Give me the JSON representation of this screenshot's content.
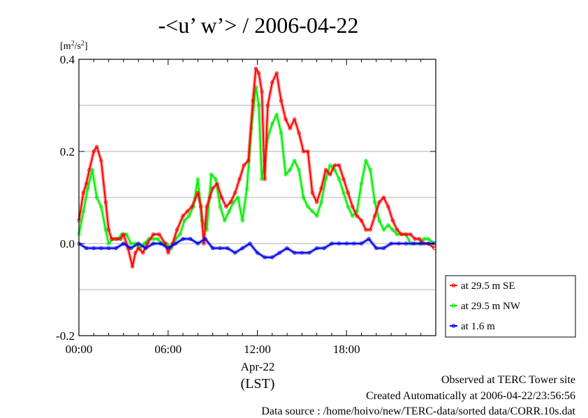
{
  "chart_data": {
    "type": "line",
    "title": "-<u’ w’> / 2006-04-22",
    "ylabel_base": "[m",
    "ylabel_sup1": "2",
    "ylabel_mid": "/s",
    "ylabel_sup2": "2",
    "ylabel_end": "]",
    "xlabel_date": "Apr-22",
    "xlabel_unit": "(LST)",
    "xlim": [
      0,
      24
    ],
    "ylim": [
      -0.2,
      0.4
    ],
    "x_ticks": [
      {
        "value": 0,
        "label": "00:00"
      },
      {
        "value": 6,
        "label": "06:00"
      },
      {
        "value": 12,
        "label": "12:00"
      },
      {
        "value": 18,
        "label": "18:00"
      }
    ],
    "y_ticks": [
      {
        "value": -0.2,
        "label": "-0.2"
      },
      {
        "value": 0.0,
        "label": "0.0"
      },
      {
        "value": 0.2,
        "label": "0.2"
      },
      {
        "value": 0.4,
        "label": "0.4"
      }
    ],
    "gridlines_y": [
      -0.1,
      0.1,
      0.3
    ],
    "legend_position": "bottom-right",
    "series": [
      {
        "name": "at 29.5 m SE",
        "color": "#ff0000",
        "x": [
          0,
          0.3,
          0.5,
          0.7,
          1.0,
          1.2,
          1.5,
          1.8,
          2.0,
          2.2,
          2.5,
          2.8,
          3.0,
          3.3,
          3.6,
          3.8,
          4.0,
          4.3,
          4.6,
          5.0,
          5.4,
          5.8,
          6.0,
          6.3,
          6.6,
          7.0,
          7.3,
          7.6,
          8.0,
          8.2,
          8.4,
          8.6,
          8.8,
          9.0,
          9.3,
          9.6,
          9.9,
          10.2,
          10.5,
          10.8,
          11.1,
          11.4,
          11.7,
          11.9,
          12.1,
          12.3,
          12.5,
          12.7,
          13.0,
          13.3,
          13.6,
          13.9,
          14.2,
          14.5,
          14.8,
          15.1,
          15.4,
          15.7,
          16.0,
          16.3,
          16.6,
          16.9,
          17.2,
          17.5,
          17.8,
          18.1,
          18.4,
          18.7,
          19.0,
          19.3,
          19.6,
          19.9,
          20.2,
          20.5,
          20.8,
          21.1,
          21.4,
          21.7,
          22.0,
          22.3,
          22.6,
          22.9,
          23.2,
          23.5,
          23.9
        ],
        "values": [
          0.05,
          0.11,
          0.13,
          0.16,
          0.2,
          0.21,
          0.18,
          0.09,
          0.03,
          0.01,
          0.01,
          0.01,
          0.02,
          -0.01,
          -0.05,
          -0.02,
          -0.01,
          -0.02,
          0.0,
          0.02,
          0.02,
          0.0,
          -0.02,
          0.0,
          0.03,
          0.06,
          0.07,
          0.08,
          0.11,
          0.08,
          0.0,
          0.08,
          0.1,
          0.12,
          0.13,
          0.1,
          0.08,
          0.09,
          0.11,
          0.14,
          0.17,
          0.18,
          0.31,
          0.38,
          0.37,
          0.33,
          0.14,
          0.3,
          0.35,
          0.37,
          0.31,
          0.27,
          0.25,
          0.27,
          0.24,
          0.2,
          0.2,
          0.11,
          0.09,
          0.12,
          0.16,
          0.15,
          0.17,
          0.17,
          0.14,
          0.11,
          0.08,
          0.06,
          0.05,
          0.03,
          0.03,
          0.06,
          0.09,
          0.1,
          0.08,
          0.05,
          0.03,
          0.02,
          0.02,
          0.02,
          0.01,
          0.01,
          0.0,
          0.0,
          -0.01
        ]
      },
      {
        "name": "at 29.5 m NW",
        "color": "#00ee00",
        "x": [
          0,
          0.3,
          0.6,
          0.9,
          1.2,
          1.5,
          1.8,
          2.0,
          2.3,
          2.6,
          2.9,
          3.2,
          3.5,
          3.8,
          4.1,
          4.4,
          4.7,
          5.0,
          5.3,
          5.6,
          5.9,
          6.2,
          6.5,
          6.8,
          7.1,
          7.4,
          7.7,
          8.0,
          8.3,
          8.6,
          8.9,
          9.2,
          9.5,
          9.8,
          10.1,
          10.4,
          10.7,
          11.0,
          11.3,
          11.6,
          11.9,
          12.1,
          12.3,
          12.5,
          12.7,
          13.0,
          13.3,
          13.6,
          13.9,
          14.2,
          14.5,
          14.8,
          15.1,
          15.4,
          15.7,
          16.0,
          16.3,
          16.6,
          16.9,
          17.2,
          17.5,
          17.8,
          18.1,
          18.4,
          18.7,
          19.0,
          19.3,
          19.6,
          19.9,
          20.2,
          20.5,
          20.8,
          21.1,
          21.4,
          21.7,
          22.0,
          22.3,
          22.6,
          22.9,
          23.2,
          23.5,
          23.9
        ],
        "values": [
          0.02,
          0.07,
          0.12,
          0.16,
          0.1,
          0.08,
          0.03,
          0.0,
          0.01,
          0.01,
          0.02,
          0.02,
          0.0,
          0.0,
          -0.01,
          0.0,
          0.01,
          0.01,
          0.01,
          0.0,
          0.0,
          -0.01,
          0.01,
          0.02,
          0.05,
          0.06,
          0.08,
          0.14,
          0.05,
          0.03,
          0.15,
          0.14,
          0.08,
          0.05,
          0.07,
          0.09,
          0.1,
          0.05,
          0.12,
          0.25,
          0.34,
          0.3,
          0.14,
          0.18,
          0.23,
          0.26,
          0.28,
          0.24,
          0.15,
          0.16,
          0.18,
          0.16,
          0.1,
          0.08,
          0.07,
          0.06,
          0.09,
          0.14,
          0.17,
          0.16,
          0.14,
          0.11,
          0.08,
          0.06,
          0.07,
          0.13,
          0.18,
          0.16,
          0.09,
          0.05,
          0.03,
          0.04,
          0.03,
          0.02,
          0.02,
          0.02,
          0.0,
          0.0,
          0.0,
          0.01,
          0.01,
          0.0
        ]
      },
      {
        "name": "at 1.6 m",
        "color": "#0000ee",
        "x": [
          0,
          0.5,
          1.0,
          1.5,
          2.0,
          2.5,
          3.0,
          3.5,
          4.0,
          4.5,
          5.0,
          5.5,
          6.0,
          6.5,
          7.0,
          7.5,
          8.0,
          8.5,
          9.0,
          9.5,
          10.0,
          10.5,
          11.0,
          11.5,
          12.0,
          12.5,
          13.0,
          13.5,
          14.0,
          14.5,
          15.0,
          15.5,
          16.0,
          16.5,
          17.0,
          17.5,
          18.0,
          18.5,
          19.0,
          19.5,
          20.0,
          20.5,
          21.0,
          21.5,
          22.0,
          22.5,
          23.0,
          23.5,
          23.9
        ],
        "values": [
          0.0,
          -0.01,
          -0.01,
          -0.01,
          -0.01,
          -0.01,
          0.0,
          -0.01,
          0.0,
          -0.01,
          0.0,
          0.0,
          -0.01,
          0.0,
          0.01,
          0.01,
          0.0,
          0.01,
          -0.01,
          -0.01,
          -0.01,
          -0.02,
          -0.01,
          0.0,
          -0.02,
          -0.03,
          -0.03,
          -0.02,
          -0.01,
          -0.02,
          -0.02,
          -0.02,
          -0.01,
          -0.01,
          0.0,
          0.0,
          0.0,
          0.0,
          0.0,
          0.01,
          -0.01,
          -0.01,
          0.0,
          0.0,
          0.0,
          0.0,
          0.0,
          0.0,
          0.0
        ]
      }
    ]
  },
  "footer": {
    "line1": "Observed at TERC Tower site",
    "line2": "Created Automatically at 2006-04-22/23:56:56",
    "line3": "Data source : /home/hoivo/new/TERC-data/sorted  data/CORR.10s.dat"
  }
}
